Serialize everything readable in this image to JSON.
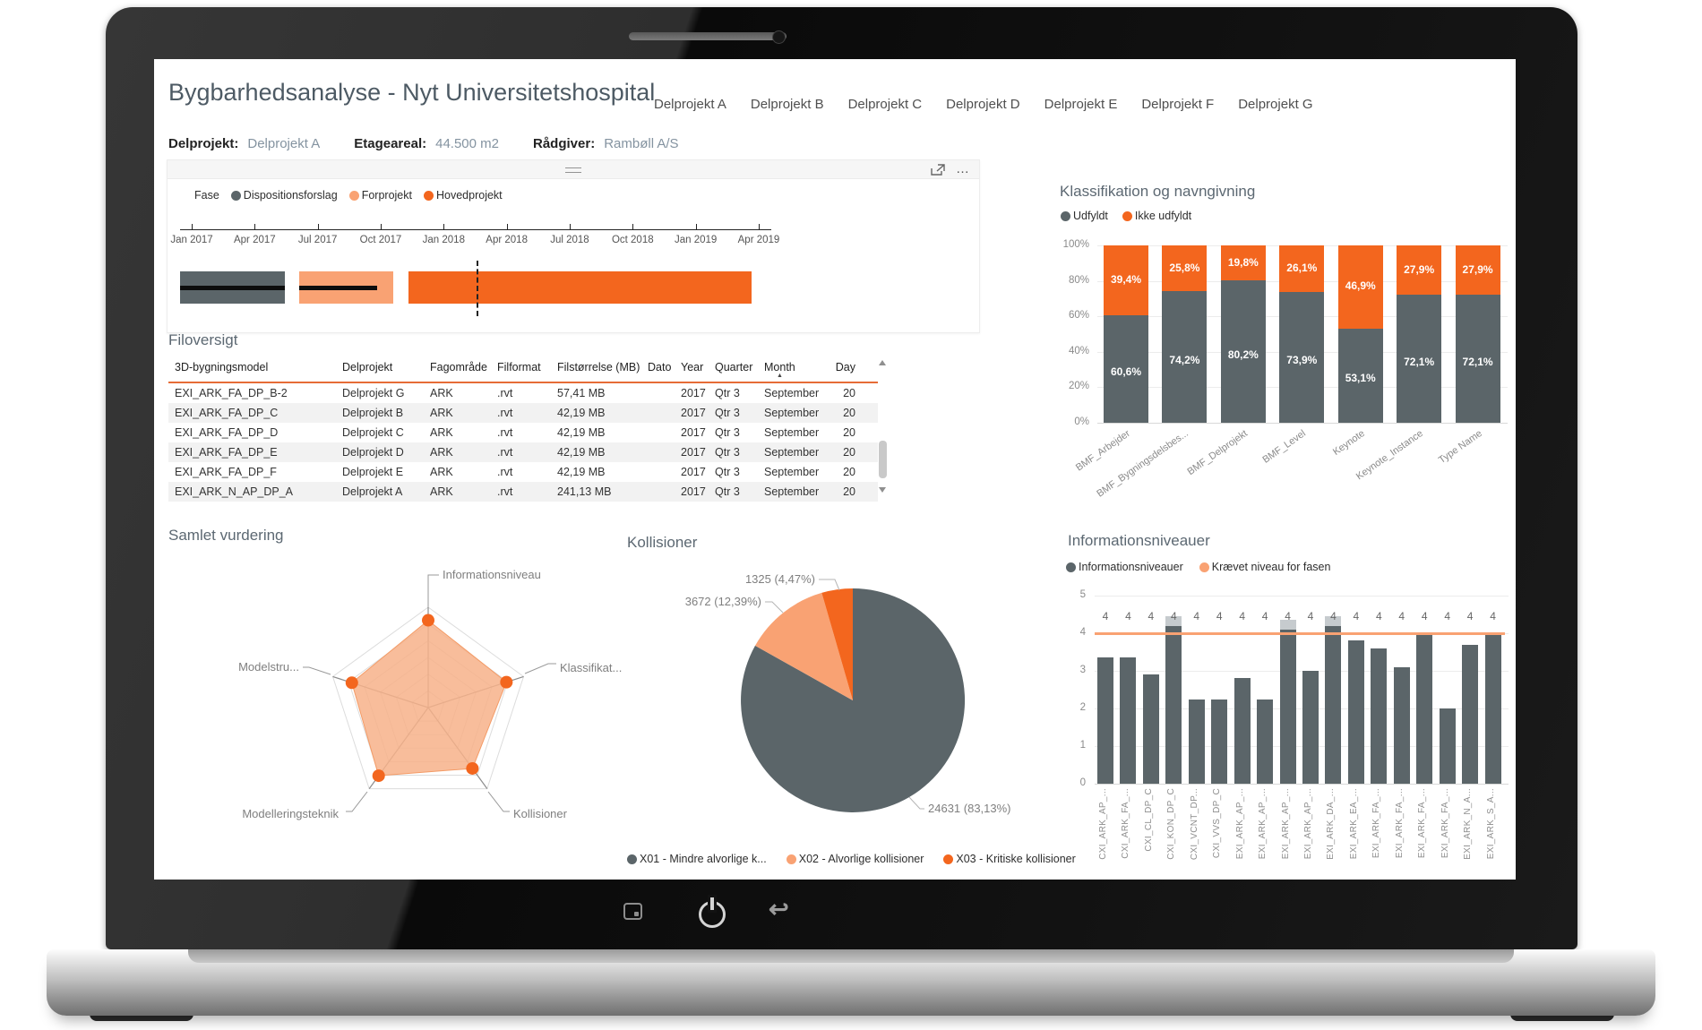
{
  "icons": {
    "more_options": "…",
    "sort_asc": "▲",
    "back_arrow": "↩"
  },
  "colors": {
    "gray": "#5B6569",
    "orange": "#F3661E",
    "light_orange": "#F9A273",
    "header_accent": "#E66C37"
  },
  "header": {
    "title": "Bygbarhedsanalyse - Nyt Universitetshospital",
    "tabs": [
      "Delprojekt A",
      "Delprojekt B",
      "Delprojekt C",
      "Delprojekt D",
      "Delprojekt E",
      "Delprojekt F",
      "Delprojekt G"
    ],
    "meta": [
      {
        "label": "Delprojekt:",
        "value": "Delprojekt A"
      },
      {
        "label": "Etageareal:",
        "value": "44.500 m2"
      },
      {
        "label": "Rådgiver:",
        "value": "Rambøll A/S"
      }
    ]
  },
  "gantt": {
    "legend_title": "Fase",
    "legend": [
      {
        "label": "Dispositionsforslag",
        "color": "gray"
      },
      {
        "label": "Forprojekt",
        "color": "light_orange"
      },
      {
        "label": "Hovedprojekt",
        "color": "orange"
      }
    ],
    "axis_ticks": [
      "Jan 2017",
      "Apr 2017",
      "Jul 2017",
      "Oct 2017",
      "Jan 2018",
      "Apr 2018",
      "Jul 2018",
      "Oct 2018",
      "Jan 2019",
      "Apr 2019"
    ],
    "bars": [
      {
        "phase": "Dispositionsforslag",
        "color": "gray",
        "start": 0.0,
        "end": 0.177,
        "progress_end": 0.177
      },
      {
        "phase": "Forprojekt",
        "color": "light_orange",
        "start": 0.201,
        "end": 0.361,
        "progress_end": 0.333
      },
      {
        "phase": "Hovedprojekt",
        "color": "orange",
        "start": 0.386,
        "end": 0.967,
        "progress_end": null
      }
    ],
    "today_marker": 0.501
  },
  "file_table": {
    "title": "Filoversigt",
    "columns": [
      "3D-bygningsmodel",
      "Delprojekt",
      "Fagområde",
      "Filformat",
      "Filstørrelse (MB)",
      "Dato",
      "Year",
      "Quarter",
      "Month",
      "Day"
    ],
    "sort_column": "Month",
    "rows": [
      [
        "EXI_ARK_FA_DP_B-2",
        "Delprojekt G",
        "ARK",
        ".rvt",
        "57,41 MB",
        "",
        "2017",
        "Qtr 3",
        "September",
        "20"
      ],
      [
        "EXI_ARK_FA_DP_C",
        "Delprojekt B",
        "ARK",
        ".rvt",
        "42,19 MB",
        "",
        "2017",
        "Qtr 3",
        "September",
        "20"
      ],
      [
        "EXI_ARK_FA_DP_D",
        "Delprojekt C",
        "ARK",
        ".rvt",
        "42,19 MB",
        "",
        "2017",
        "Qtr 3",
        "September",
        "20"
      ],
      [
        "EXI_ARK_FA_DP_E",
        "Delprojekt D",
        "ARK",
        ".rvt",
        "42,19 MB",
        "",
        "2017",
        "Qtr 3",
        "September",
        "20"
      ],
      [
        "EXI_ARK_FA_DP_F",
        "Delprojekt E",
        "ARK",
        ".rvt",
        "42,19 MB",
        "",
        "2017",
        "Qtr 3",
        "September",
        "20"
      ],
      [
        "EXI_ARK_N_AP_DP_A",
        "Delprojekt A",
        "ARK",
        ".rvt",
        "241,13 MB",
        "",
        "2017",
        "Qtr 3",
        "September",
        "20"
      ]
    ]
  },
  "klassifikation": {
    "title": "Klassifikation og navngivning",
    "type": "stacked-bar",
    "legend": [
      {
        "label": "Udfyldt",
        "color": "gray"
      },
      {
        "label": "Ikke udfyldt",
        "color": "orange"
      }
    ],
    "y_ticks": [
      "100%",
      "80%",
      "60%",
      "40%",
      "20%",
      "0%"
    ],
    "categories": [
      "BMF_Arbejder",
      "BMF_Bygningsdelsbes...",
      "BMF_Delprojekt",
      "BMF_Level",
      "Keynote",
      "Keynote_Instance",
      "Type Name"
    ],
    "series": [
      {
        "name": "Udfyldt",
        "color": "gray",
        "values": [
          60.6,
          74.2,
          80.2,
          73.9,
          53.1,
          72.1,
          72.1
        ]
      },
      {
        "name": "Ikke udfyldt",
        "color": "orange",
        "values": [
          39.4,
          25.8,
          19.8,
          26.1,
          46.9,
          27.9,
          27.9
        ]
      }
    ]
  },
  "radar": {
    "title": "Samlet vurdering",
    "type": "radar",
    "axes": [
      "Informationsniveau",
      "Klassifikat...",
      "Kollisioner",
      "Modelleringsteknik",
      "Modelstru..."
    ],
    "values": [
      0.87,
      0.82,
      0.75,
      0.84,
      0.8
    ]
  },
  "pie": {
    "title": "Kollisioner",
    "type": "pie",
    "slices": [
      {
        "label": "X01 - Mindre alvorlige k...",
        "value": 24631,
        "callout": "24631 (83,13%)",
        "color": "gray"
      },
      {
        "label": "X02 - Alvorlige kollisioner",
        "value": 3672,
        "callout": "3672 (12,39%)",
        "color": "light_orange"
      },
      {
        "label": "X03 - Kritiske kollisioner",
        "value": 1325,
        "callout": "1325 (4,47%)",
        "color": "orange"
      }
    ]
  },
  "info": {
    "title": "Informationsniveauer",
    "type": "bar-with-target-line",
    "legend": [
      {
        "label": "Informationsniveauer",
        "color": "gray"
      },
      {
        "label": "Krævet niveau for fasen",
        "color": "light_orange"
      }
    ],
    "y_ticks": [
      "5",
      "4",
      "3",
      "2",
      "1",
      "0"
    ],
    "y_max": 5,
    "target": 4,
    "target_label": "4",
    "categories": [
      "CXI_ARK_AP_...",
      "CXI_ARK_FA_...",
      "CXI_CL_DP_C",
      "CXI_KON_DP_C",
      "CXI_VCNT_DP...",
      "CXI_VVS_DP_C",
      "EXI_ARK_AP_...",
      "EXI_ARK_AP_...",
      "EXI_ARK_AP_...",
      "EXI_ARK_AP_...",
      "EXI_ARK_DA_...",
      "EXI_ARK_EA_...",
      "EXI_ARK_FA_...",
      "EXI_ARK_FA_...",
      "EXI_ARK_FA_...",
      "EXI_ARK_FA_...",
      "EXI_ARK_N_A...",
      "EXI_ARK_S_A..."
    ],
    "values": [
      3.35,
      3.35,
      2.9,
      4.2,
      2.25,
      2.25,
      2.8,
      2.25,
      4.1,
      3.0,
      4.2,
      3.8,
      3.6,
      3.1,
      3.95,
      2.0,
      3.7,
      3.95
    ]
  }
}
